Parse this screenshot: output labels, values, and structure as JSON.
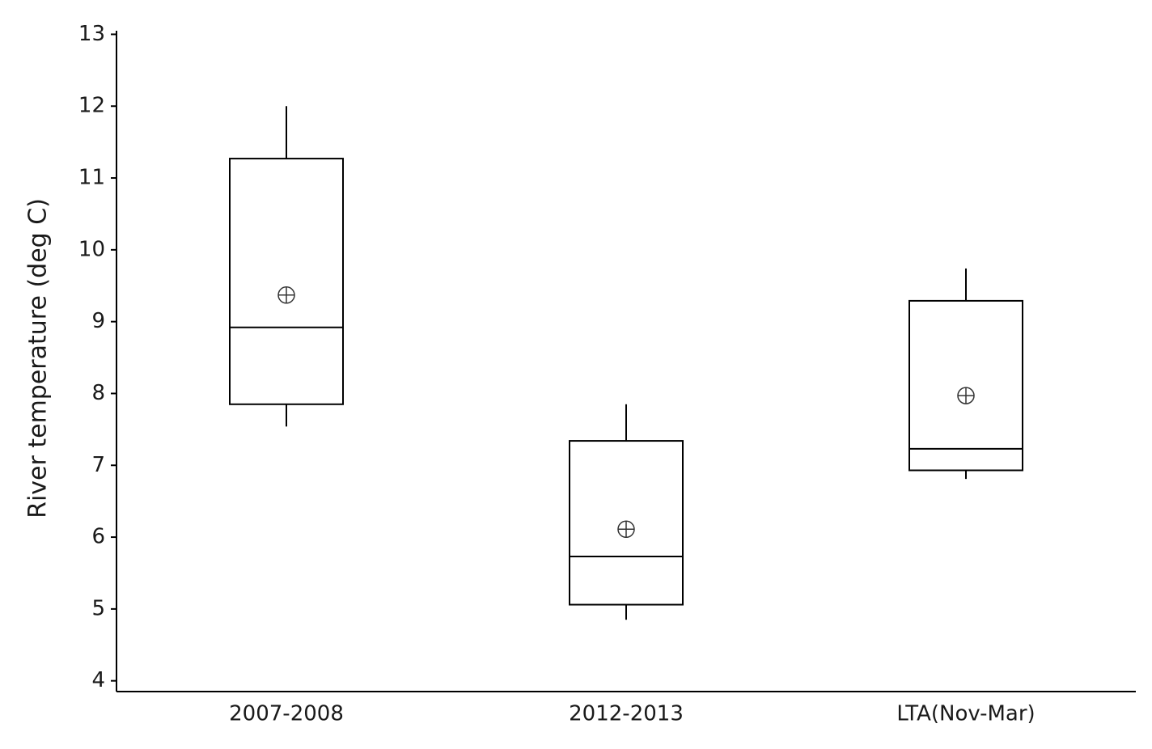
{
  "chart_data": {
    "type": "box",
    "y_label": "River temperature (deg C)",
    "categories": [
      "2007-2008",
      "2012-2013",
      "LTA(Nov-Mar)"
    ],
    "max": [
      12.0,
      7.85,
      9.74
    ],
    "q3": [
      11.27,
      7.34,
      9.29
    ],
    "median": [
      8.92,
      5.73,
      7.23
    ],
    "q1": [
      7.85,
      5.06,
      6.93
    ],
    "min": [
      7.54,
      4.85,
      6.81
    ],
    "mean": [
      9.37,
      6.11,
      7.97
    ],
    "color": "#000000",
    "ylim": [
      3.85,
      13.05
    ],
    "yticks": [
      4,
      5,
      6,
      7,
      8,
      9,
      10,
      11,
      12,
      13
    ],
    "grid": false
  }
}
